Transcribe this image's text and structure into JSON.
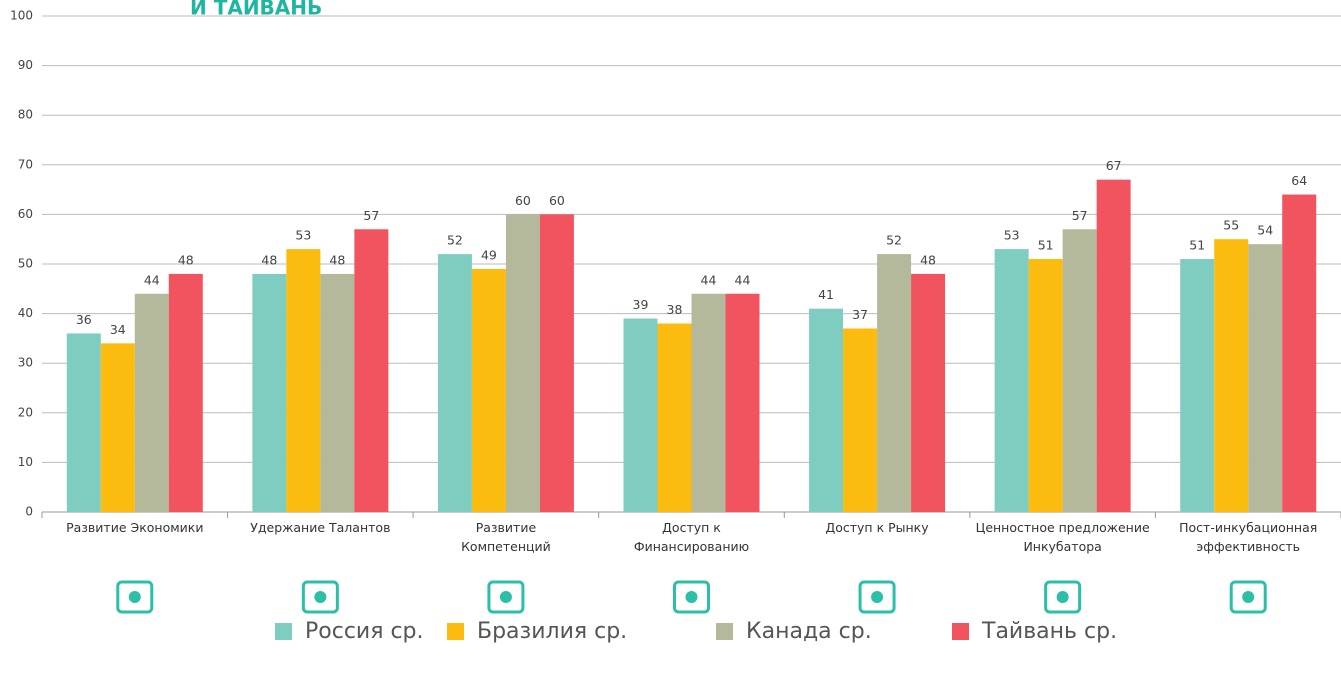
{
  "chart_data": {
    "type": "bar",
    "title": "И ТАЙВАНЬ",
    "categories": [
      "Развитие Экономики",
      "Удержание Талантов",
      "Развитие\nКомпетенций",
      "Доступ к\nФинансированию",
      "Доступ к Рынку",
      "Ценностное предложение\nИнкубатора",
      "Пост-инкубационная\nэффективность"
    ],
    "series": [
      {
        "name": "Россия ср.",
        "color": "#7fcdc1",
        "values": [
          36,
          48,
          52,
          39,
          41,
          53,
          51
        ]
      },
      {
        "name": "Бразилия ср.",
        "color": "#fbbb0f",
        "values": [
          34,
          53,
          49,
          38,
          37,
          51,
          55
        ]
      },
      {
        "name": "Канада ср.",
        "color": "#b5b99b",
        "values": [
          44,
          48,
          60,
          44,
          52,
          57,
          54
        ]
      },
      {
        "name": "Тайвань ср.",
        "color": "#f2545f",
        "values": [
          48,
          57,
          60,
          44,
          48,
          67,
          64
        ]
      }
    ],
    "ylim": [
      0,
      100
    ],
    "yticks": [
      0,
      10,
      20,
      30,
      40,
      50,
      60,
      70,
      80,
      90,
      100
    ],
    "grid": true,
    "legend": "bottom"
  }
}
